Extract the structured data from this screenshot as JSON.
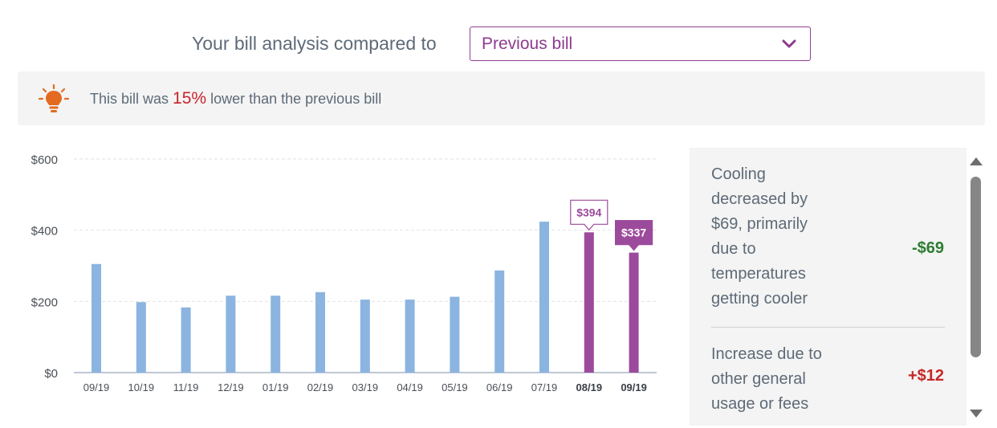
{
  "compare": {
    "label": "Your bill analysis compared to",
    "selected": "Previous bill"
  },
  "banner": {
    "prefix": "This bill was",
    "percent": "15%",
    "suffix": "lower than the previous bill"
  },
  "chart_data": {
    "type": "bar",
    "title": "",
    "xlabel": "",
    "ylabel": "",
    "ylim": [
      0,
      600
    ],
    "yticks": [
      0,
      200,
      400,
      600
    ],
    "ytick_labels": [
      "$0",
      "$200",
      "$400",
      "$600"
    ],
    "categories": [
      "09/19",
      "10/19",
      "11/19",
      "12/19",
      "01/19",
      "02/19",
      "03/19",
      "04/19",
      "05/19",
      "06/19",
      "07/19",
      "08/19",
      "09/19"
    ],
    "values": [
      305,
      198,
      183,
      216,
      216,
      226,
      205,
      205,
      213,
      287,
      424,
      394,
      337
    ],
    "highlighted": [
      false,
      false,
      false,
      false,
      false,
      false,
      false,
      false,
      false,
      false,
      false,
      true,
      true
    ],
    "data_labels": [
      {
        "index": 11,
        "text": "$394",
        "style": "outline"
      },
      {
        "index": 12,
        "text": "$337",
        "style": "filled"
      }
    ],
    "colors": {
      "default": "#8bb4e0",
      "highlight": "#9c4a9c",
      "grid": "#e2e2e2",
      "axis": "#bfc8d4"
    }
  },
  "breakdown": {
    "items": [
      {
        "text": "Cooling decreased by $69, primarily due to temperatures getting cooler",
        "amount": "-$69",
        "amount_color": "#2e7d32"
      },
      {
        "text": "Increase due to other general usage or fees",
        "amount": "+$12",
        "amount_color": "#c62828"
      }
    ]
  },
  "colors": {
    "accent": "#8e3a8e",
    "warning": "#c9242c",
    "bulb": "#e36b21"
  }
}
